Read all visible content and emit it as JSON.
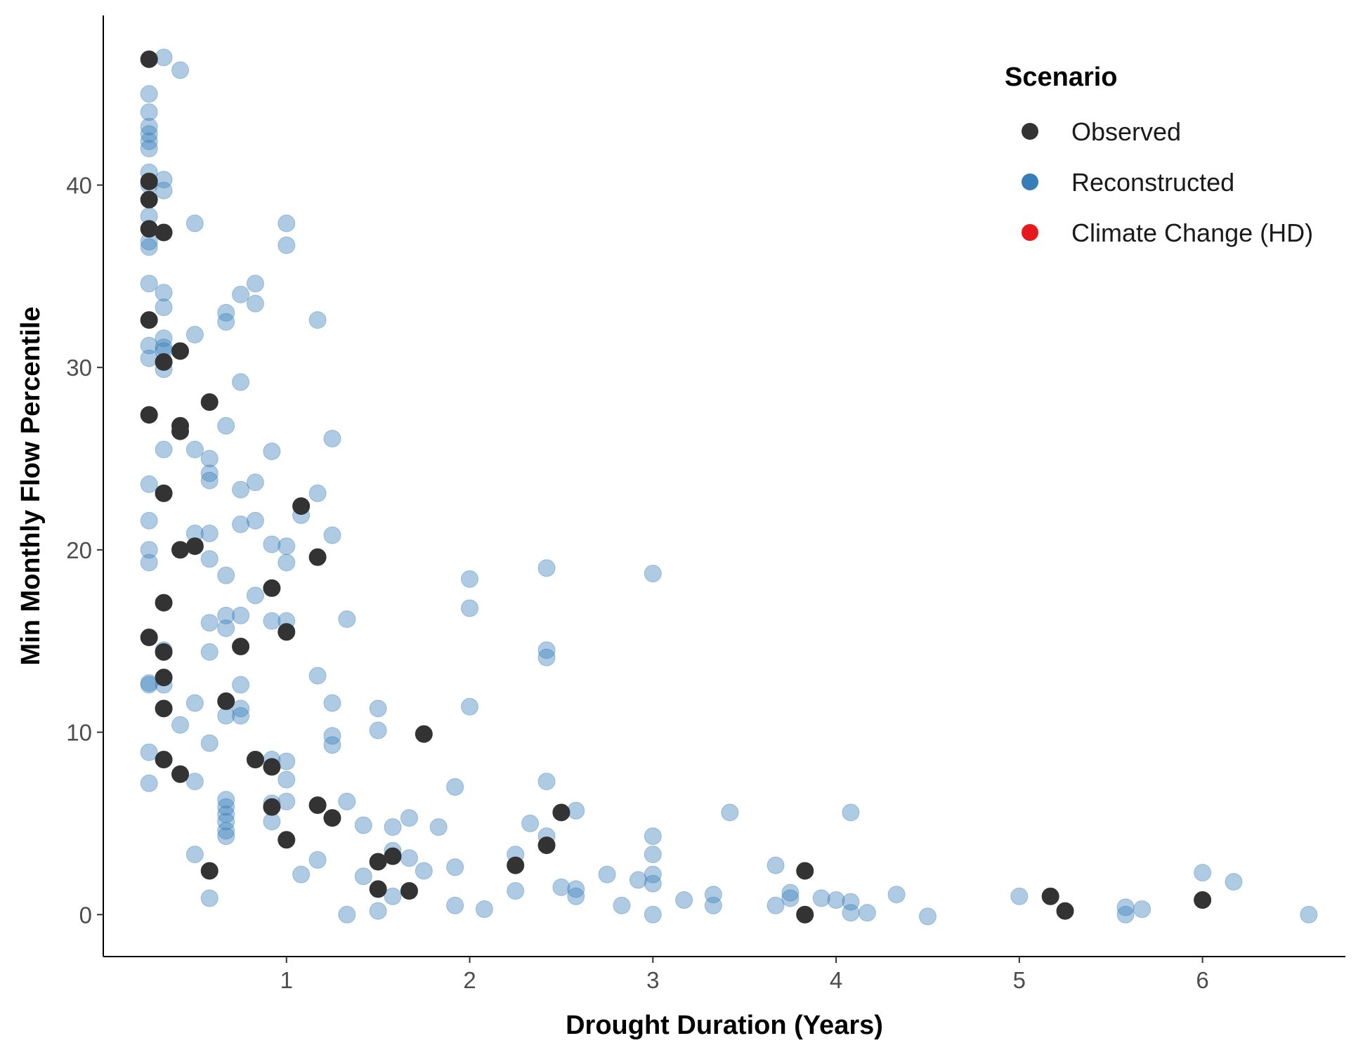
{
  "chart_data": {
    "type": "scatter",
    "title": "",
    "xlabel": "Drought Duration (Years)",
    "ylabel": "Min Monthly Flow Percentile",
    "xlim": [
      0.0,
      6.78
    ],
    "ylim": [
      -2.3,
      49.3
    ],
    "x_ticks": [
      1,
      2,
      3,
      4,
      5,
      6
    ],
    "y_ticks": [
      0,
      10,
      20,
      30,
      40
    ],
    "grid": false,
    "legend": {
      "title": "Scenario",
      "position": "top-right",
      "entries": [
        {
          "label": "Observed",
          "color": "#333333"
        },
        {
          "label": "Reconstructed",
          "color": "#377eb8"
        },
        {
          "label": "Climate Change (HD)",
          "color": "#e41a1c"
        }
      ]
    },
    "series": [
      {
        "name": "Reconstructed",
        "color": "#377eb8",
        "opacity": 0.4,
        "points": [
          [
            0.33,
            47.0
          ],
          [
            0.42,
            46.3
          ],
          [
            0.25,
            45.0
          ],
          [
            0.25,
            44.0
          ],
          [
            0.25,
            43.2
          ],
          [
            0.25,
            42.8
          ],
          [
            0.25,
            42.4
          ],
          [
            0.25,
            42.0
          ],
          [
            0.25,
            40.7
          ],
          [
            0.33,
            40.3
          ],
          [
            0.25,
            40.0
          ],
          [
            0.33,
            39.7
          ],
          [
            0.25,
            38.3
          ],
          [
            0.5,
            37.9
          ],
          [
            1.0,
            37.9
          ],
          [
            0.25,
            36.9
          ],
          [
            0.25,
            36.6
          ],
          [
            1.0,
            36.7
          ],
          [
            0.25,
            34.6
          ],
          [
            0.83,
            34.6
          ],
          [
            0.33,
            34.1
          ],
          [
            0.75,
            34.0
          ],
          [
            0.83,
            33.5
          ],
          [
            0.33,
            33.3
          ],
          [
            0.67,
            33.0
          ],
          [
            0.67,
            32.5
          ],
          [
            1.17,
            32.6
          ],
          [
            0.5,
            31.8
          ],
          [
            0.33,
            31.6
          ],
          [
            0.25,
            31.2
          ],
          [
            0.33,
            31.1
          ],
          [
            0.33,
            30.9
          ],
          [
            0.25,
            30.5
          ],
          [
            0.33,
            29.9
          ],
          [
            0.75,
            29.2
          ],
          [
            0.67,
            26.8
          ],
          [
            1.25,
            26.1
          ],
          [
            0.33,
            25.5
          ],
          [
            0.5,
            25.5
          ],
          [
            0.92,
            25.4
          ],
          [
            0.58,
            25.0
          ],
          [
            0.58,
            24.2
          ],
          [
            0.58,
            23.8
          ],
          [
            0.83,
            23.7
          ],
          [
            0.25,
            23.6
          ],
          [
            0.75,
            23.3
          ],
          [
            1.17,
            23.1
          ],
          [
            1.08,
            21.9
          ],
          [
            0.25,
            21.6
          ],
          [
            0.83,
            21.6
          ],
          [
            0.75,
            21.4
          ],
          [
            0.5,
            20.9
          ],
          [
            0.58,
            20.9
          ],
          [
            1.25,
            20.8
          ],
          [
            0.92,
            20.3
          ],
          [
            1.0,
            20.2
          ],
          [
            0.25,
            20.0
          ],
          [
            0.58,
            19.5
          ],
          [
            1.0,
            19.3
          ],
          [
            0.25,
            19.3
          ],
          [
            2.42,
            19.0
          ],
          [
            3.0,
            18.7
          ],
          [
            0.67,
            18.6
          ],
          [
            2.0,
            18.4
          ],
          [
            0.83,
            17.5
          ],
          [
            2.0,
            16.8
          ],
          [
            0.67,
            16.4
          ],
          [
            0.75,
            16.4
          ],
          [
            1.33,
            16.2
          ],
          [
            0.92,
            16.1
          ],
          [
            1.0,
            16.1
          ],
          [
            0.58,
            16.0
          ],
          [
            0.67,
            15.7
          ],
          [
            2.42,
            14.5
          ],
          [
            0.33,
            14.5
          ],
          [
            0.58,
            14.4
          ],
          [
            2.42,
            14.1
          ],
          [
            1.17,
            13.1
          ],
          [
            0.25,
            12.7
          ],
          [
            0.25,
            12.6
          ],
          [
            0.33,
            12.6
          ],
          [
            0.75,
            12.6
          ],
          [
            0.5,
            11.6
          ],
          [
            1.25,
            11.6
          ],
          [
            2.0,
            11.4
          ],
          [
            1.5,
            11.3
          ],
          [
            0.75,
            11.3
          ],
          [
            0.67,
            10.9
          ],
          [
            0.75,
            10.9
          ],
          [
            0.42,
            10.4
          ],
          [
            1.5,
            10.1
          ],
          [
            1.25,
            9.8
          ],
          [
            0.58,
            9.4
          ],
          [
            1.25,
            9.3
          ],
          [
            0.25,
            8.9
          ],
          [
            0.92,
            8.5
          ],
          [
            1.0,
            8.4
          ],
          [
            1.0,
            7.4
          ],
          [
            0.5,
            7.3
          ],
          [
            2.42,
            7.3
          ],
          [
            0.25,
            7.2
          ],
          [
            1.92,
            7.0
          ],
          [
            0.67,
            6.3
          ],
          [
            1.33,
            6.2
          ],
          [
            1.0,
            6.2
          ],
          [
            0.92,
            6.1
          ],
          [
            0.67,
            5.9
          ],
          [
            0.67,
            5.5
          ],
          [
            2.58,
            5.7
          ],
          [
            3.42,
            5.6
          ],
          [
            4.08,
            5.6
          ],
          [
            1.67,
            5.3
          ],
          [
            0.67,
            5.1
          ],
          [
            0.92,
            5.1
          ],
          [
            2.33,
            5.0
          ],
          [
            1.42,
            4.9
          ],
          [
            1.58,
            4.8
          ],
          [
            1.83,
            4.8
          ],
          [
            0.67,
            4.6
          ],
          [
            0.67,
            4.3
          ],
          [
            2.42,
            4.3
          ],
          [
            3.0,
            4.3
          ],
          [
            1.58,
            3.5
          ],
          [
            0.5,
            3.3
          ],
          [
            3.0,
            3.3
          ],
          [
            1.67,
            3.1
          ],
          [
            2.25,
            3.3
          ],
          [
            1.17,
            3.0
          ],
          [
            3.67,
            2.7
          ],
          [
            1.92,
            2.6
          ],
          [
            1.75,
            2.4
          ],
          [
            6.0,
            2.3
          ],
          [
            3.0,
            2.2
          ],
          [
            1.08,
            2.2
          ],
          [
            2.75,
            2.2
          ],
          [
            1.42,
            2.1
          ],
          [
            2.92,
            1.9
          ],
          [
            6.17,
            1.8
          ],
          [
            3.0,
            1.7
          ],
          [
            2.5,
            1.5
          ],
          [
            2.58,
            1.4
          ],
          [
            2.25,
            1.3
          ],
          [
            3.75,
            1.2
          ],
          [
            3.33,
            1.1
          ],
          [
            4.33,
            1.1
          ],
          [
            1.58,
            1.0
          ],
          [
            2.58,
            1.0
          ],
          [
            5.0,
            1.0
          ],
          [
            0.58,
            0.9
          ],
          [
            3.92,
            0.9
          ],
          [
            3.75,
            0.9
          ],
          [
            4.0,
            0.8
          ],
          [
            3.17,
            0.8
          ],
          [
            4.08,
            0.7
          ],
          [
            2.83,
            0.5
          ],
          [
            3.67,
            0.5
          ],
          [
            3.33,
            0.5
          ],
          [
            1.92,
            0.5
          ],
          [
            5.58,
            0.4
          ],
          [
            5.67,
            0.3
          ],
          [
            1.5,
            0.2
          ],
          [
            2.08,
            0.3
          ],
          [
            4.08,
            0.1
          ],
          [
            4.17,
            0.1
          ],
          [
            5.58,
            0.0
          ],
          [
            1.33,
            0.0
          ],
          [
            3.0,
            0.0
          ],
          [
            4.5,
            -0.1
          ],
          [
            6.58,
            0.0
          ]
        ]
      },
      {
        "name": "Observed",
        "color": "#333333",
        "opacity": 1.0,
        "points": [
          [
            0.25,
            46.9
          ],
          [
            0.25,
            40.2
          ],
          [
            0.25,
            39.2
          ],
          [
            0.25,
            37.6
          ],
          [
            0.33,
            37.4
          ],
          [
            0.25,
            32.6
          ],
          [
            0.42,
            30.9
          ],
          [
            0.33,
            30.3
          ],
          [
            0.58,
            28.1
          ],
          [
            0.25,
            27.4
          ],
          [
            0.42,
            26.8
          ],
          [
            0.42,
            26.5
          ],
          [
            0.33,
            23.1
          ],
          [
            1.08,
            22.4
          ],
          [
            0.5,
            20.2
          ],
          [
            0.42,
            20.0
          ],
          [
            1.17,
            19.6
          ],
          [
            0.92,
            17.9
          ],
          [
            0.33,
            17.1
          ],
          [
            1.0,
            15.5
          ],
          [
            0.25,
            15.2
          ],
          [
            0.75,
            14.7
          ],
          [
            0.33,
            14.4
          ],
          [
            0.33,
            13.0
          ],
          [
            0.67,
            11.7
          ],
          [
            0.33,
            11.3
          ],
          [
            1.75,
            9.9
          ],
          [
            0.33,
            8.5
          ],
          [
            0.83,
            8.5
          ],
          [
            0.92,
            8.1
          ],
          [
            0.42,
            7.7
          ],
          [
            1.17,
            6.0
          ],
          [
            0.92,
            5.9
          ],
          [
            2.5,
            5.6
          ],
          [
            1.25,
            5.3
          ],
          [
            1.0,
            4.1
          ],
          [
            2.42,
            3.8
          ],
          [
            1.58,
            3.2
          ],
          [
            1.5,
            2.9
          ],
          [
            2.25,
            2.7
          ],
          [
            0.58,
            2.4
          ],
          [
            3.83,
            2.4
          ],
          [
            1.5,
            1.4
          ],
          [
            1.67,
            1.3
          ],
          [
            5.17,
            1.0
          ],
          [
            6.0,
            0.8
          ],
          [
            5.25,
            0.2
          ],
          [
            3.83,
            0.0
          ]
        ]
      },
      {
        "name": "Climate Change (HD)",
        "color": "#e41a1c",
        "opacity": 1.0,
        "points": []
      }
    ]
  }
}
